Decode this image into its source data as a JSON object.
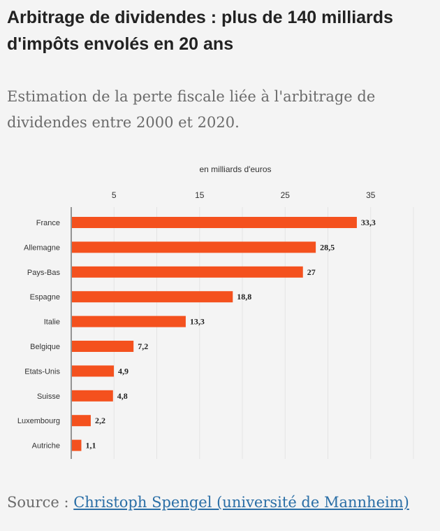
{
  "header": {
    "title": "Arbitrage de dividendes : plus de 140 milliards d'impôts envolés en 20 ans",
    "subtitle": "Estimation de la perte fiscale liée à l'arbitrage de dividendes entre 2000 et 2020."
  },
  "chart_data": {
    "type": "bar",
    "orientation": "horizontal",
    "title": "",
    "xlabel": "en milliards d'euros",
    "ylabel": "",
    "categories": [
      "France",
      "Allemagne",
      "Pays-Bas",
      "Espagne",
      "Italie",
      "Belgique",
      "Etats-Unis",
      "Suisse",
      "Luxembourg",
      "Autriche"
    ],
    "values": [
      33.3,
      28.5,
      27,
      18.8,
      13.3,
      7.2,
      4.9,
      4.8,
      2.2,
      1.1
    ],
    "value_labels": [
      "33,3",
      "28,5",
      "27",
      "18,8",
      "13,3",
      "7,2",
      "4,9",
      "4,8",
      "2,2",
      "1,1"
    ],
    "x_ticks": [
      5,
      15,
      25,
      35
    ],
    "xlim": [
      0,
      40
    ],
    "grid": true,
    "legend": "none",
    "bar_color": "#f4511e"
  },
  "footer": {
    "source_prefix": "Source : ",
    "source_link": "Christoph Spengel (université de Mannheim)"
  }
}
